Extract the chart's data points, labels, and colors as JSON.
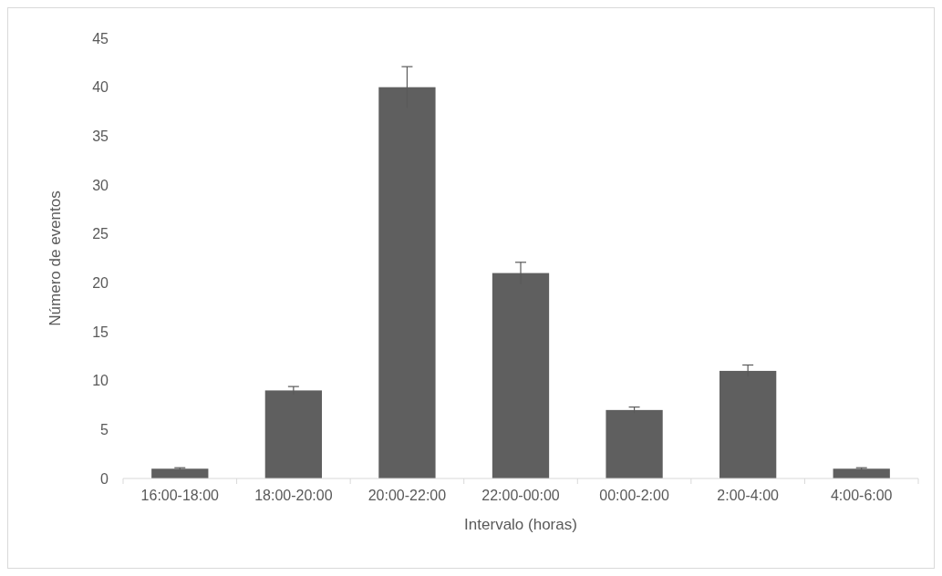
{
  "chart_data": {
    "type": "bar",
    "xlabel": "Intervalo (horas)",
    "ylabel": "Número de eventos",
    "categories": [
      "16:00-18:00",
      "18:00-20:00",
      "20:00-22:00",
      "22:00-00:00",
      "00:00-2:00",
      "2:00-4:00",
      "4:00-6:00"
    ],
    "values": [
      1,
      9,
      40,
      21,
      7,
      11,
      1
    ],
    "errors": [
      0.1,
      0.4,
      2.1,
      1.1,
      0.3,
      0.6,
      0.1
    ],
    "color": "#5f5f5f",
    "ylim": [
      0,
      45
    ],
    "yticks": [
      0,
      5,
      10,
      15,
      20,
      25,
      30,
      35,
      40,
      45
    ],
    "grid": false
  }
}
